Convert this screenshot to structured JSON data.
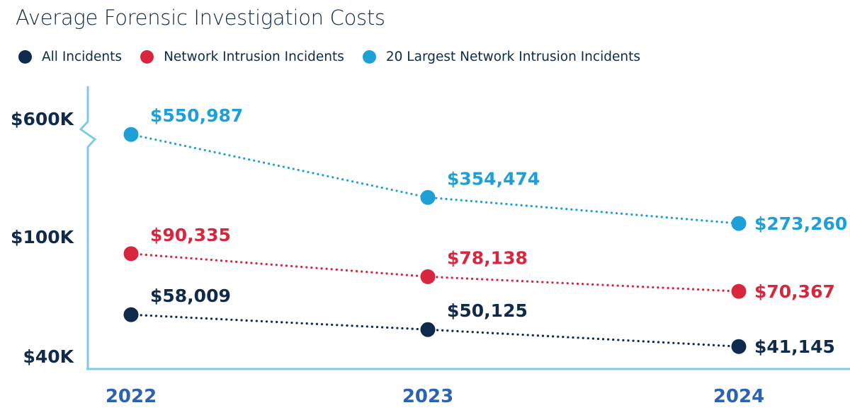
{
  "chart_data": {
    "type": "line",
    "title": "Average Forensic Investigation Costs",
    "xlabel": "",
    "ylabel": "",
    "categories": [
      "2022",
      "2023",
      "2024"
    ],
    "y_tick_labels": [
      "$600K",
      "$100K",
      "$40K"
    ],
    "axis_break": true,
    "legend_position": "top-left",
    "grid": false,
    "series": [
      {
        "name": "All Incidents",
        "color": "#0f2a4a",
        "values": [
          58009,
          50125,
          41145
        ],
        "labels": [
          "$58,009",
          "$50,125",
          "$41,145"
        ]
      },
      {
        "name": "Network Intrusion Incidents",
        "color": "#d7263d",
        "values": [
          90335,
          78138,
          70367
        ],
        "labels": [
          "$90,335",
          "$78,138",
          "$70,367"
        ]
      },
      {
        "name": "20 Largest Network Intrusion Incidents",
        "color": "#1ea0d6",
        "values": [
          550987,
          354474,
          273260
        ],
        "labels": [
          "$550,987",
          "$354,474",
          "$273,260"
        ]
      }
    ],
    "axis_color": "#7fcbe6",
    "year_label_color": "#2b63b0"
  }
}
